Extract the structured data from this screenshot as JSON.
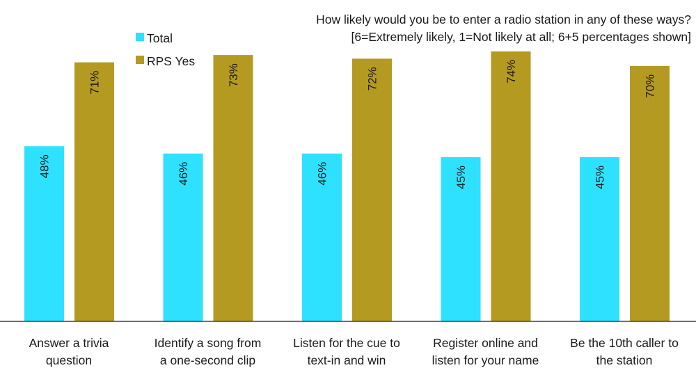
{
  "chart_data": {
    "type": "bar",
    "title": [
      "How likely would you be to enter a radio station in any of these ways?",
      "[6=Extremely likely, 1=Not likely at all; 6+5 percentages shown]"
    ],
    "categories": [
      [
        "Answer a trivia",
        "question"
      ],
      [
        "Identify a song from",
        "a one-second clip"
      ],
      [
        "Listen for the cue to",
        "text-in and win"
      ],
      [
        "Register online and",
        "listen for your name"
      ],
      [
        "Be the 10th caller to",
        "the station"
      ]
    ],
    "series": [
      {
        "name": "Total",
        "color": "#2ee2ff",
        "values": [
          48,
          46,
          46,
          45,
          45
        ]
      },
      {
        "name": "RPS Yes",
        "color": "#b59a22",
        "values": [
          71,
          73,
          72,
          74,
          70
        ]
      }
    ],
    "value_suffix": "%",
    "ylim": [
      0,
      100
    ],
    "legend_position": "top-left",
    "grid": false
  }
}
